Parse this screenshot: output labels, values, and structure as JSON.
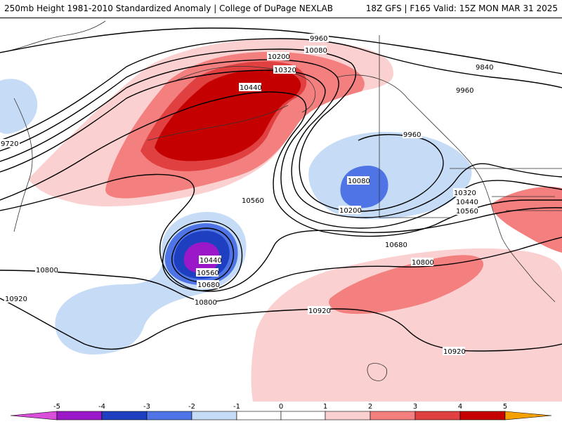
{
  "header": {
    "title": "250mb Height 1981-2010 Standardized Anomaly | College of DuPage NEXLAB",
    "run_info": "18Z GFS | F165 Valid: 15Z MON MAR 31 2025"
  },
  "colors": {
    "neg5": "#d94fd9",
    "neg4": "#9b18c8",
    "neg3": "#1e3fc0",
    "neg2": "#4e74e6",
    "neg1": "#c6dcf6",
    "zero": "#ffffff",
    "pos1": "#fbd0d0",
    "pos2": "#f47f7f",
    "pos3": "#e04040",
    "pos4": "#c40000",
    "pos5": "#f4a000"
  },
  "colorbar": {
    "ticks": [
      "-5",
      "-4",
      "-3",
      "-2",
      "-1",
      "0",
      "1",
      "2",
      "3",
      "4",
      "5"
    ]
  },
  "contour_labels": {
    "c1": "9960",
    "c2": "10080",
    "c3": "10200",
    "c4": "10320",
    "c5": "10440",
    "c6": "9840",
    "c7": "9960",
    "c8": "9720",
    "c9": "9960",
    "c10": "10080",
    "c11": "10200",
    "c12": "10560",
    "c13": "10320",
    "c14": "10440",
    "c15": "10560",
    "c16": "10680",
    "c17": "10800",
    "c18": "10440",
    "c19": "10560",
    "c20": "10680",
    "c21": "10800",
    "c22": "10800",
    "c23": "10920",
    "c24": "10920",
    "c25": "10920"
  }
}
